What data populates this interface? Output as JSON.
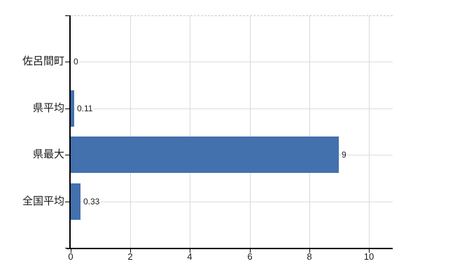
{
  "chart_data": {
    "type": "bar",
    "orientation": "horizontal",
    "title": "",
    "categories": [
      "佐呂間町",
      "県平均",
      "県最大",
      "全国平均"
    ],
    "values": [
      0,
      0.11,
      9,
      0.33
    ],
    "value_labels": [
      "0",
      "0.11",
      "9",
      "0.33"
    ],
    "x_ticks": [
      0,
      2,
      4,
      6,
      8,
      10
    ],
    "xlim": [
      0,
      10.8
    ],
    "grid": true,
    "legend": false,
    "bar_color": "#4271ae",
    "gridline_color": "#d9d9d9",
    "top_border_color": "#c9c9c9",
    "axis_color": "#000000",
    "text_color": "#1a1a1a"
  }
}
